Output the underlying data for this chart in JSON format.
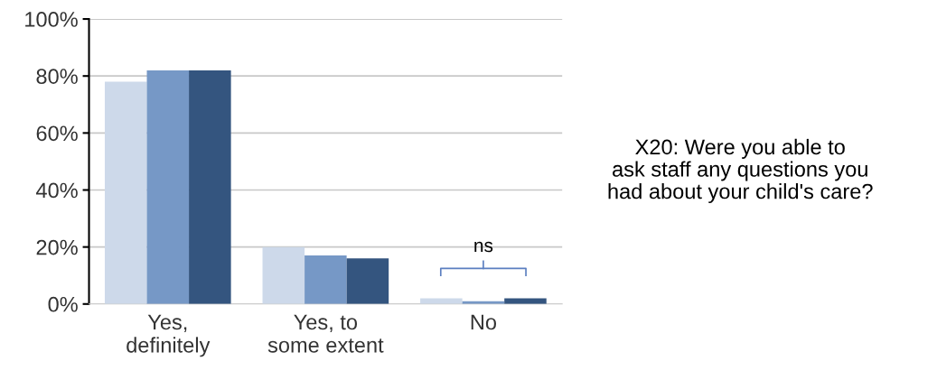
{
  "chart_data": {
    "type": "bar",
    "title": "X20: Were you able to\nask staff any questions you\nhad about your child's care?",
    "categories": [
      "Yes,\ndefinitely",
      "Yes, to\nsome extent",
      "No"
    ],
    "series": [
      {
        "color": "#cdd9ea",
        "values": [
          78,
          20,
          2
        ]
      },
      {
        "color": "#7698c6",
        "values": [
          82,
          17,
          1
        ]
      },
      {
        "color": "#34557f",
        "values": [
          82,
          16,
          2
        ]
      }
    ],
    "ylim": [
      0,
      100
    ],
    "yticks": [
      {
        "value": 0,
        "label": "0%"
      },
      {
        "value": 20,
        "label": "20%"
      },
      {
        "value": 40,
        "label": "40%"
      },
      {
        "value": 60,
        "label": "60%"
      },
      {
        "value": 80,
        "label": "80%"
      },
      {
        "value": 100,
        "label": "100%"
      }
    ],
    "grid": "y",
    "legend": false,
    "annotations": [
      "ns"
    ]
  }
}
